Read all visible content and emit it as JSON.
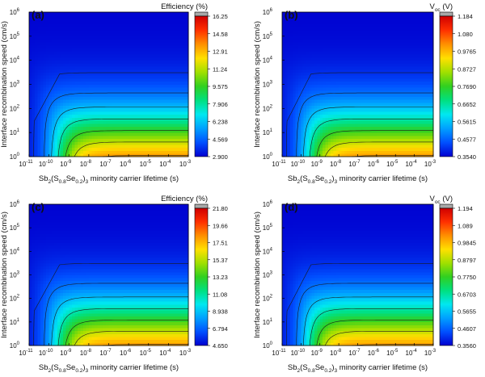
{
  "chart_data": [
    {
      "type": "heatmap",
      "panel_label": "(a)",
      "colorbar_title": "Efficiency",
      "colorbar_unit": "(%)",
      "colorbar_ticks": [
        "16.25",
        "14.58",
        "12.91",
        "11.24",
        "9.575",
        "7.906",
        "6.238",
        "4.569",
        "2.900"
      ],
      "ylabel": "Interface recombination speed (cm/s)",
      "xlabel": {
        "pre": "Sb",
        "s1": "2",
        "mid1": "(S",
        "s2": "0.8",
        "mid2": "Se",
        "s3": "0.2",
        "mid3": ")",
        "s4": "3",
        "post": " minority carrier lifetime (s)"
      },
      "x_scale": "log",
      "x_range": [
        1e-11,
        0.001
      ],
      "y_scale": "log",
      "y_range": [
        1,
        1000000
      ],
      "z_range": [
        2.9,
        16.25
      ],
      "contours": "black iso-lines"
    },
    {
      "type": "heatmap",
      "panel_label": "(b)",
      "colorbar_title": "V",
      "colorbar_title_sub": "oc",
      "colorbar_unit": "(V)",
      "colorbar_ticks": [
        "1.184",
        "1.080",
        "0.9765",
        "0.8727",
        "0.7690",
        "0.6652",
        "0.5615",
        "0.4577",
        "0.3540"
      ],
      "ylabel": "Interface recombination speed (cm/s)",
      "xlabel": {
        "pre": "Sb",
        "s1": "2",
        "mid1": "(S",
        "s2": "0.8",
        "mid2": "Se",
        "s3": "0.2",
        "mid3": ")",
        "s4": "3",
        "post": " minority carrier lifetime (s)"
      },
      "x_scale": "log",
      "x_range": [
        1e-11,
        0.001
      ],
      "y_scale": "log",
      "y_range": [
        1,
        1000000
      ],
      "z_range": [
        0.354,
        1.184
      ],
      "contours": "black iso-lines"
    },
    {
      "type": "heatmap",
      "panel_label": "(c)",
      "colorbar_title": "Efficiency",
      "colorbar_unit": "(%)",
      "colorbar_ticks": [
        "21.80",
        "19.66",
        "17.51",
        "15.37",
        "13.23",
        "11.08",
        "8.938",
        "6.794",
        "4.650"
      ],
      "ylabel": "Interface recombination speed (cm/s)",
      "xlabel": {
        "pre": "Sb",
        "s1": "2",
        "mid1": "(S",
        "s2": "0.8",
        "mid2": "Se",
        "s3": "0.2",
        "mid3": ")",
        "s4": "3",
        "post": " minority carrier lifetime (s)"
      },
      "x_scale": "log",
      "x_range": [
        1e-11,
        0.001
      ],
      "y_scale": "log",
      "y_range": [
        1,
        1000000
      ],
      "z_range": [
        4.65,
        21.8
      ],
      "contours": "black iso-lines"
    },
    {
      "type": "heatmap",
      "panel_label": "(d)",
      "colorbar_title": "V",
      "colorbar_title_sub": "oc",
      "colorbar_unit": "(V)",
      "colorbar_ticks": [
        "1.194",
        "1.089",
        "0.9845",
        "0.8797",
        "0.7750",
        "0.6703",
        "0.5655",
        "0.4607",
        "0.3560"
      ],
      "ylabel": "Interface recombination speed (cm/s)",
      "xlabel": {
        "pre": "Sb",
        "s1": "2",
        "mid1": "(S",
        "s2": "0.8",
        "mid2": "Se",
        "s3": "0.2",
        "mid3": ")",
        "s4": "3",
        "post": " minority carrier lifetime (s)"
      },
      "x_scale": "log",
      "x_range": [
        1e-11,
        0.001
      ],
      "y_scale": "log",
      "y_range": [
        1,
        1000000
      ],
      "z_range": [
        0.356,
        1.194
      ],
      "contours": "black iso-lines"
    }
  ],
  "x_tick_exponents": [
    "-11",
    "-10",
    "-9",
    "-8",
    "-7",
    "-6",
    "-5",
    "-4",
    "-3"
  ],
  "y_tick_exponents": [
    "0",
    "1",
    "2",
    "3",
    "4",
    "5",
    "6"
  ],
  "tick_base": "10",
  "colormap": [
    "#0000d0",
    "#0050ff",
    "#00a0ff",
    "#00e8f0",
    "#00e080",
    "#30d020",
    "#a0e000",
    "#ffe000",
    "#ff9000",
    "#ff3000",
    "#d00000"
  ],
  "colorbar_cap_color": "#a8a8a8"
}
